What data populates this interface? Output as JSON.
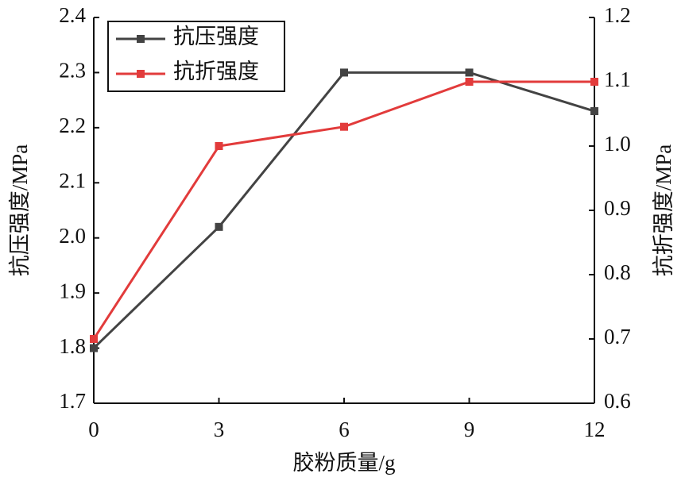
{
  "chart_data": {
    "type": "line",
    "xlabel": "胶粉质量/g",
    "ylabel": "抗压强度/MPa",
    "y2label": "抗折强度/MPa",
    "x": [
      0,
      3,
      6,
      9,
      12
    ],
    "series": [
      {
        "name": "抗压强度",
        "color": "#434343",
        "values": [
          1.8,
          2.02,
          2.3,
          2.3,
          2.23
        ]
      },
      {
        "name": "抗折强度",
        "color": "#e23b3b",
        "axis": "y2",
        "values": [
          0.7,
          1.0,
          1.03,
          1.1,
          1.1
        ]
      }
    ],
    "xlim": [
      0,
      12
    ],
    "xticks": [
      0,
      3,
      6,
      9,
      12
    ],
    "ylim": [
      1.7,
      2.4
    ],
    "yticks": [
      1.7,
      1.8,
      1.9,
      {
        "value": 2,
        "label": "2.0"
      },
      2.1,
      2.2,
      2.3,
      2.4
    ],
    "y2lim": [
      0.6,
      1.2
    ],
    "y2ticks": [
      0.6,
      0.7,
      0.8,
      0.9,
      {
        "value": 1,
        "label": "1.0"
      },
      1.1,
      1.2
    ],
    "legend": "upper left"
  }
}
